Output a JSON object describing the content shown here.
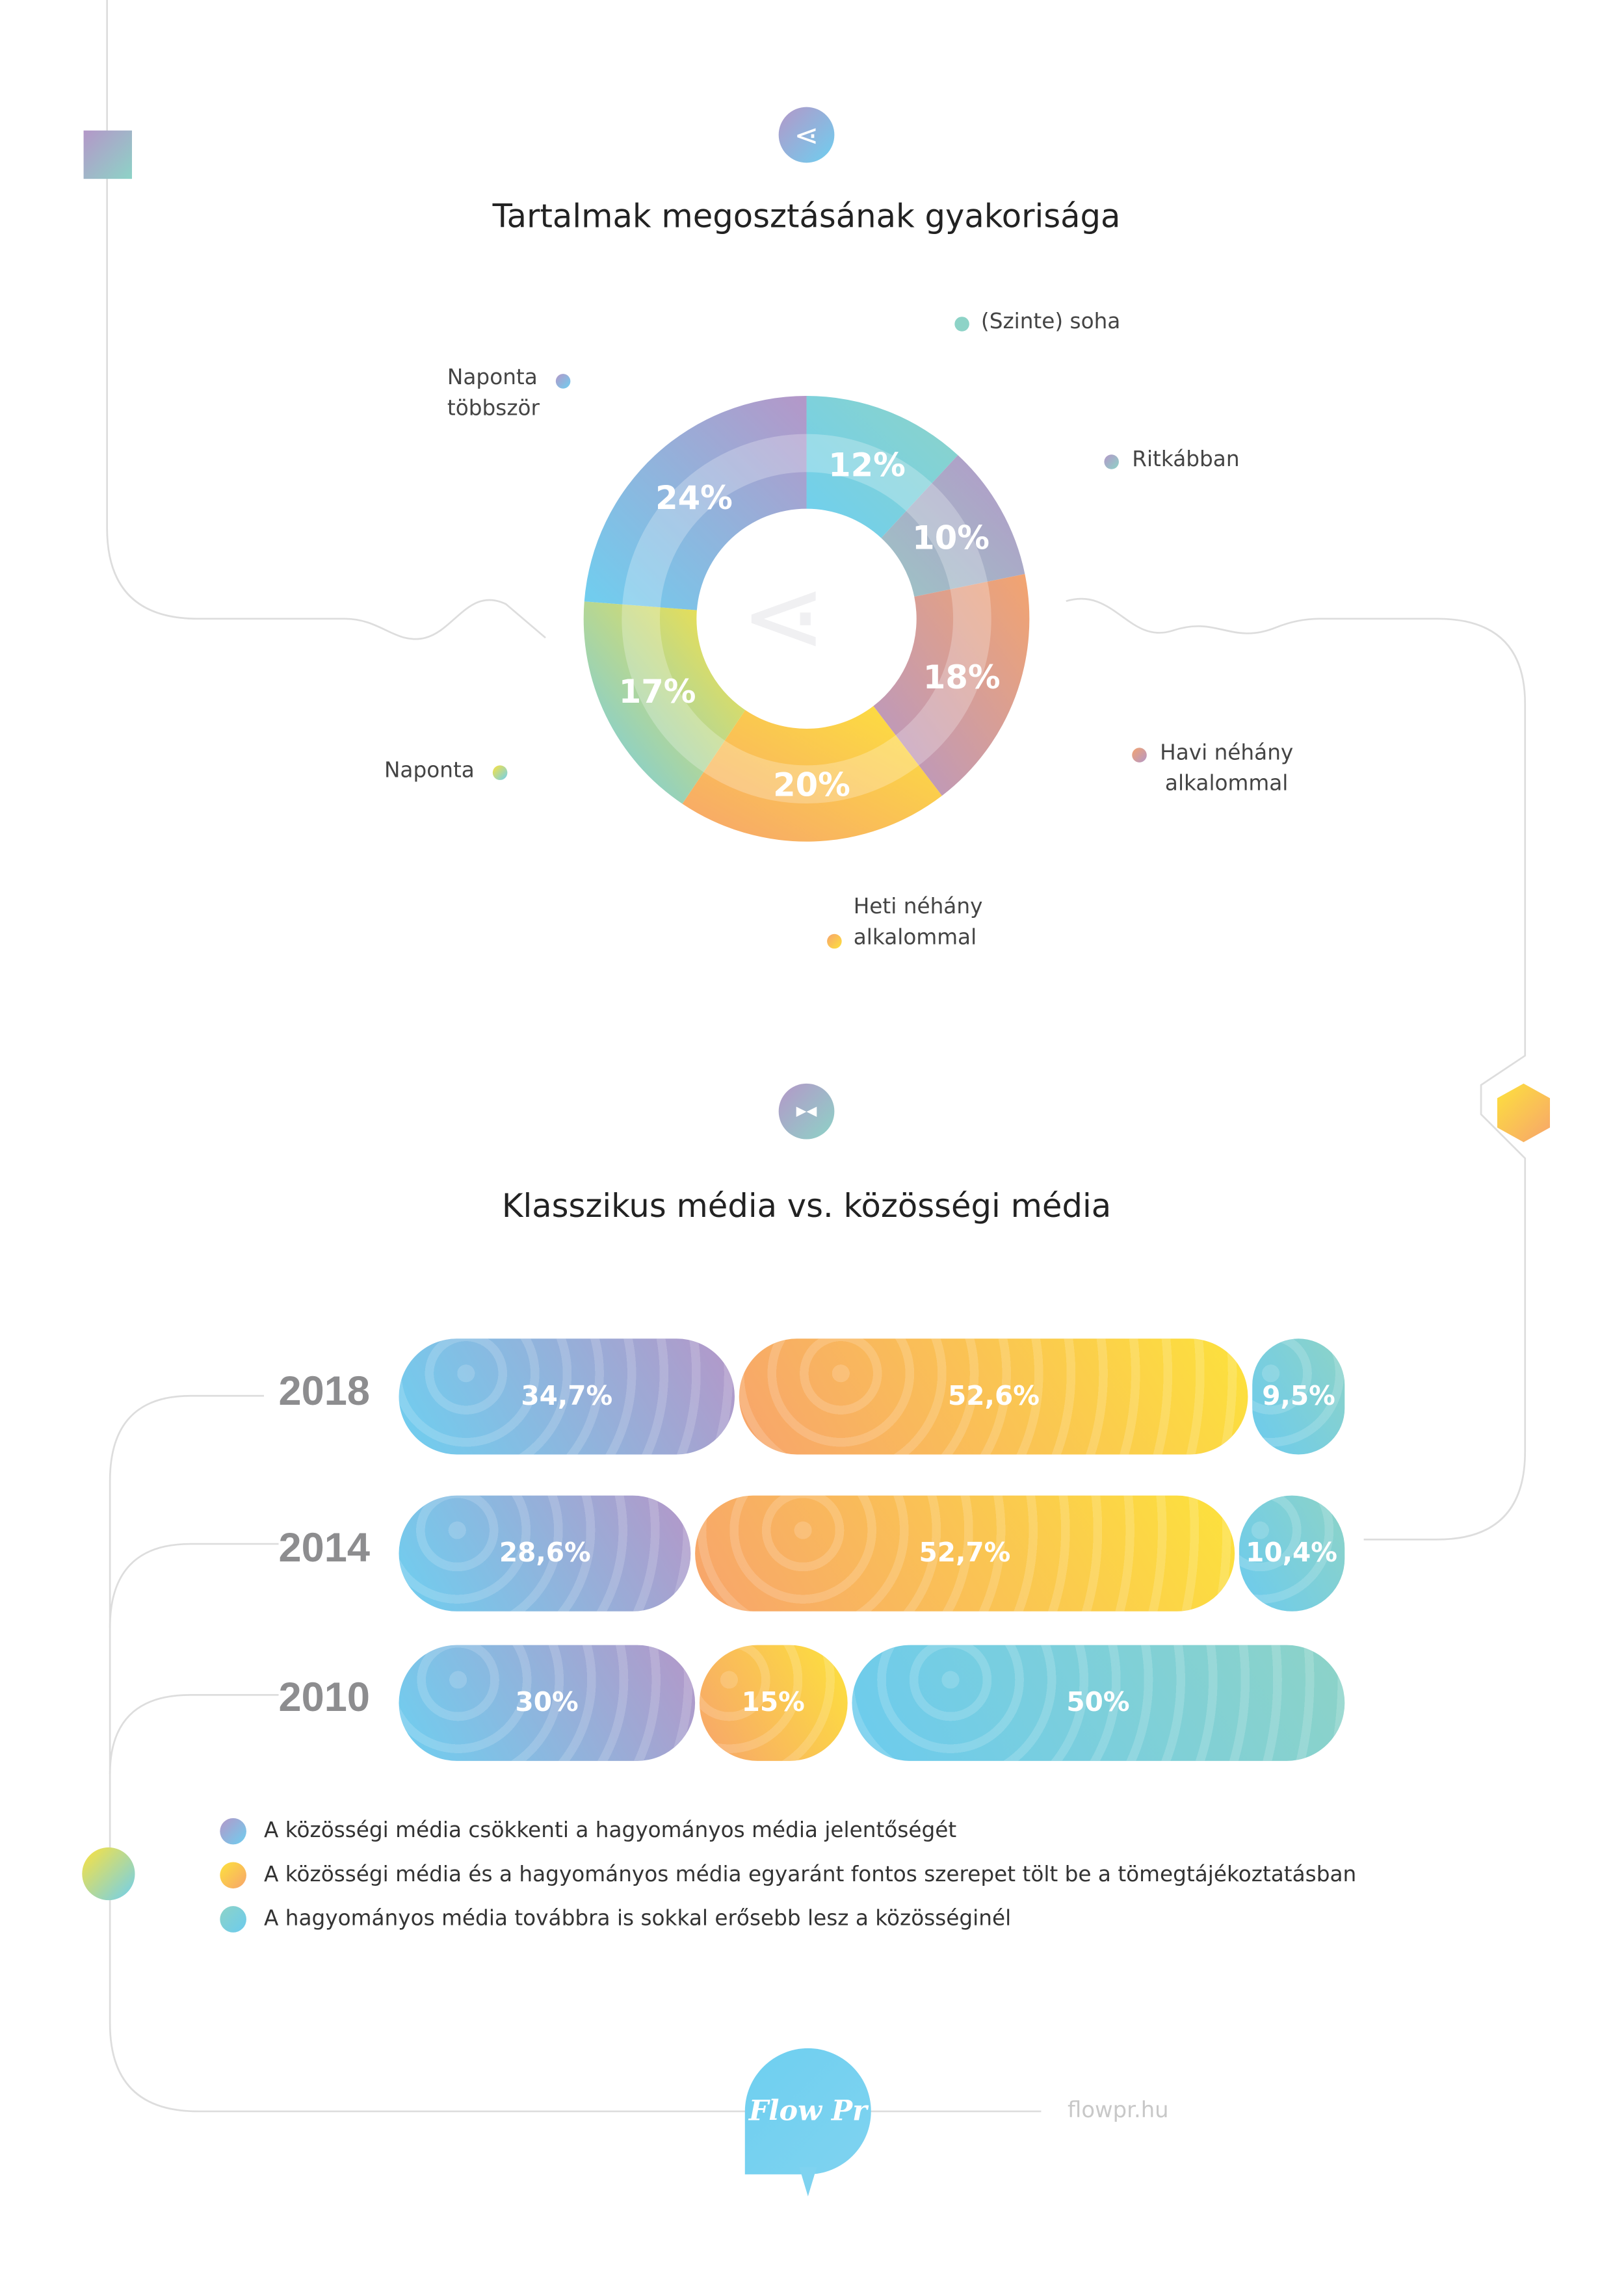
{
  "colors": {
    "social": [
      "#6ecff0",
      "#b497c8"
    ],
    "both": [
      "#f7a46c",
      "#fde23c"
    ],
    "traditional": [
      "#6ccbee",
      "#8dd3c7"
    ]
  },
  "chart_data": [
    {
      "type": "pie",
      "title": "Tartalmak megosztásának gyakorisága",
      "slices": [
        {
          "label": "(Szinte) soha",
          "value": 12,
          "text": "12%",
          "colors": [
            "#6ecff0",
            "#8dd3c7"
          ]
        },
        {
          "label": "Ritkábban",
          "value": 10,
          "text": "10%",
          "colors": [
            "#9cc5c6",
            "#b497c8"
          ]
        },
        {
          "label": "Havi néhány alkalommal",
          "value": 18,
          "text": "18%",
          "colors": [
            "#b497c8",
            "#f3a46f"
          ]
        },
        {
          "label": "Heti néhány alkalommal",
          "value": 20,
          "text": "20%",
          "colors": [
            "#f7a46c",
            "#fde23c"
          ]
        },
        {
          "label": "Naponta",
          "value": 17,
          "text": "17%",
          "colors": [
            "#6ccbee",
            "#fde23c"
          ]
        },
        {
          "label": "Naponta többször",
          "value": 24,
          "text": "24%",
          "colors": [
            "#6ecff0",
            "#b497c8"
          ]
        }
      ]
    },
    {
      "type": "bar",
      "stacked": true,
      "title": "Klasszikus média vs. közösségi média",
      "categories": [
        "2018",
        "2014",
        "2010"
      ],
      "rows": [
        {
          "year": "2018",
          "segments": [
            {
              "series": "social",
              "value": 34.7,
              "text": "34,7%"
            },
            {
              "series": "both",
              "value": 52.6,
              "text": "52,6%"
            },
            {
              "series": "traditional",
              "value": 9.5,
              "text": "9,5%"
            }
          ]
        },
        {
          "year": "2014",
          "segments": [
            {
              "series": "social",
              "value": 28.6,
              "text": "28,6%"
            },
            {
              "series": "both",
              "value": 52.7,
              "text": "52,7%"
            },
            {
              "series": "traditional",
              "value": 10.4,
              "text": "10,4%"
            }
          ]
        },
        {
          "year": "2010",
          "segments": [
            {
              "series": "social",
              "value": 30,
              "text": "30%"
            },
            {
              "series": "both",
              "value": 15,
              "text": "15%"
            },
            {
              "series": "traditional",
              "value": 50,
              "text": "50%"
            }
          ]
        }
      ],
      "legend": [
        {
          "series": "social",
          "label": "A közösségi média csökkenti a hagyományos média jelentőségét"
        },
        {
          "series": "both",
          "label": "A közösségi média és a hagyományos média egyaránt fontos szerepet tölt be a tömegtájékoztatásban"
        },
        {
          "series": "traditional",
          "label": "A hagyományos média továbbra is sokkal erősebb lesz a közösséginél"
        }
      ]
    }
  ],
  "labels": {
    "l1a": "Naponta",
    "l1b": "többször",
    "l2": "(Szinte) soha",
    "l3": "Ritkábban",
    "l4a": "Havi néhány",
    "l4b": "alkalommal",
    "l5a": "Heti néhány",
    "l5b": "alkalommal",
    "l6": "Naponta"
  },
  "footer": {
    "logo": "Flow Pr",
    "url": "flowpr.hu"
  }
}
